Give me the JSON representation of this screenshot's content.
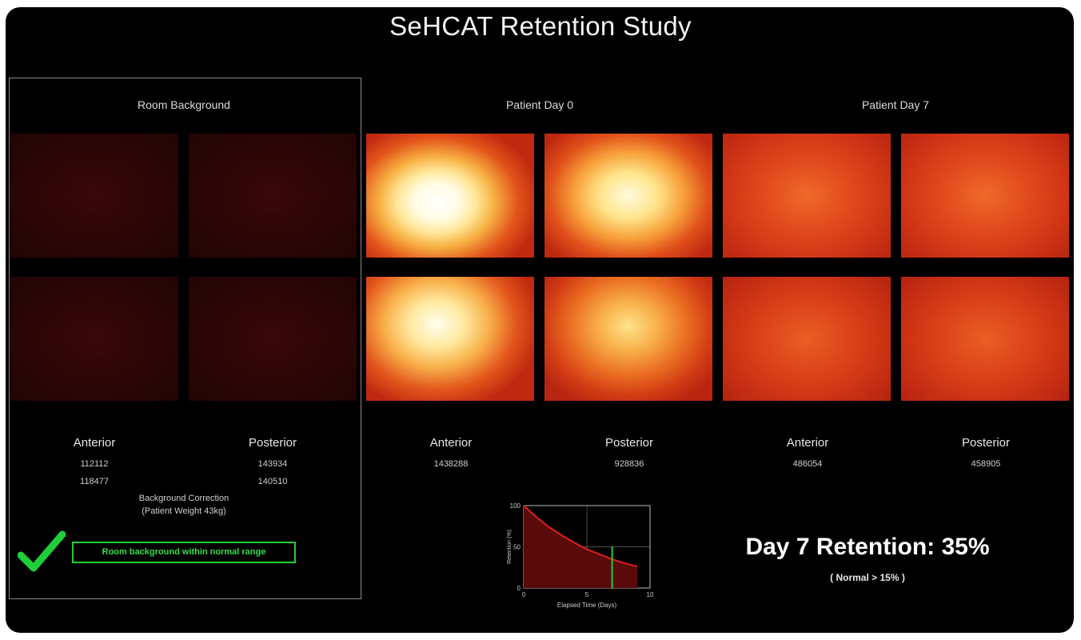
{
  "title": "SeHCAT Retention Study",
  "sections": {
    "room_background": "Room Background",
    "patient_day0": "Patient Day 0",
    "patient_day7": "Patient Day 7"
  },
  "background": {
    "anterior_label": "Anterior",
    "posterior_label": "Posterior",
    "anterior_values": [
      "112112",
      "118477"
    ],
    "posterior_values": [
      "143934",
      "140510"
    ],
    "correction_line1": "Background Correction",
    "correction_line2": "(Patient Weight 43kg)",
    "status": "Room background within normal range",
    "status_icon": "checkmark-icon",
    "status_color": "#1ecf3a"
  },
  "day0": {
    "anterior_label": "Anterior",
    "posterior_label": "Posterior",
    "anterior_value": "1438288",
    "posterior_value": "928836"
  },
  "day7": {
    "anterior_label": "Anterior",
    "posterior_label": "Posterior",
    "anterior_value": "486054",
    "posterior_value": "458905"
  },
  "result": {
    "retention": "Day 7 Retention: 35%",
    "normal": "( Normal > 15% )"
  },
  "chart_data": {
    "type": "line",
    "xlabel": "Elapsed Time (Days)",
    "ylabel": "Retention (%)",
    "xlim": [
      0,
      10
    ],
    "ylim": [
      0,
      100
    ],
    "xticks": [
      "0",
      "5",
      "10"
    ],
    "yticks": [
      "0",
      "50",
      "100"
    ],
    "series": [
      {
        "x": [
          0,
          1,
          2,
          3,
          4,
          5,
          6,
          7,
          8,
          9
        ],
        "values": [
          100,
          86,
          74,
          64,
          55,
          47,
          41,
          35,
          30,
          26
        ],
        "color": "#e02020"
      }
    ],
    "marker": {
      "x": 7,
      "value": 35,
      "color": "#22cc44"
    },
    "grid": true
  }
}
